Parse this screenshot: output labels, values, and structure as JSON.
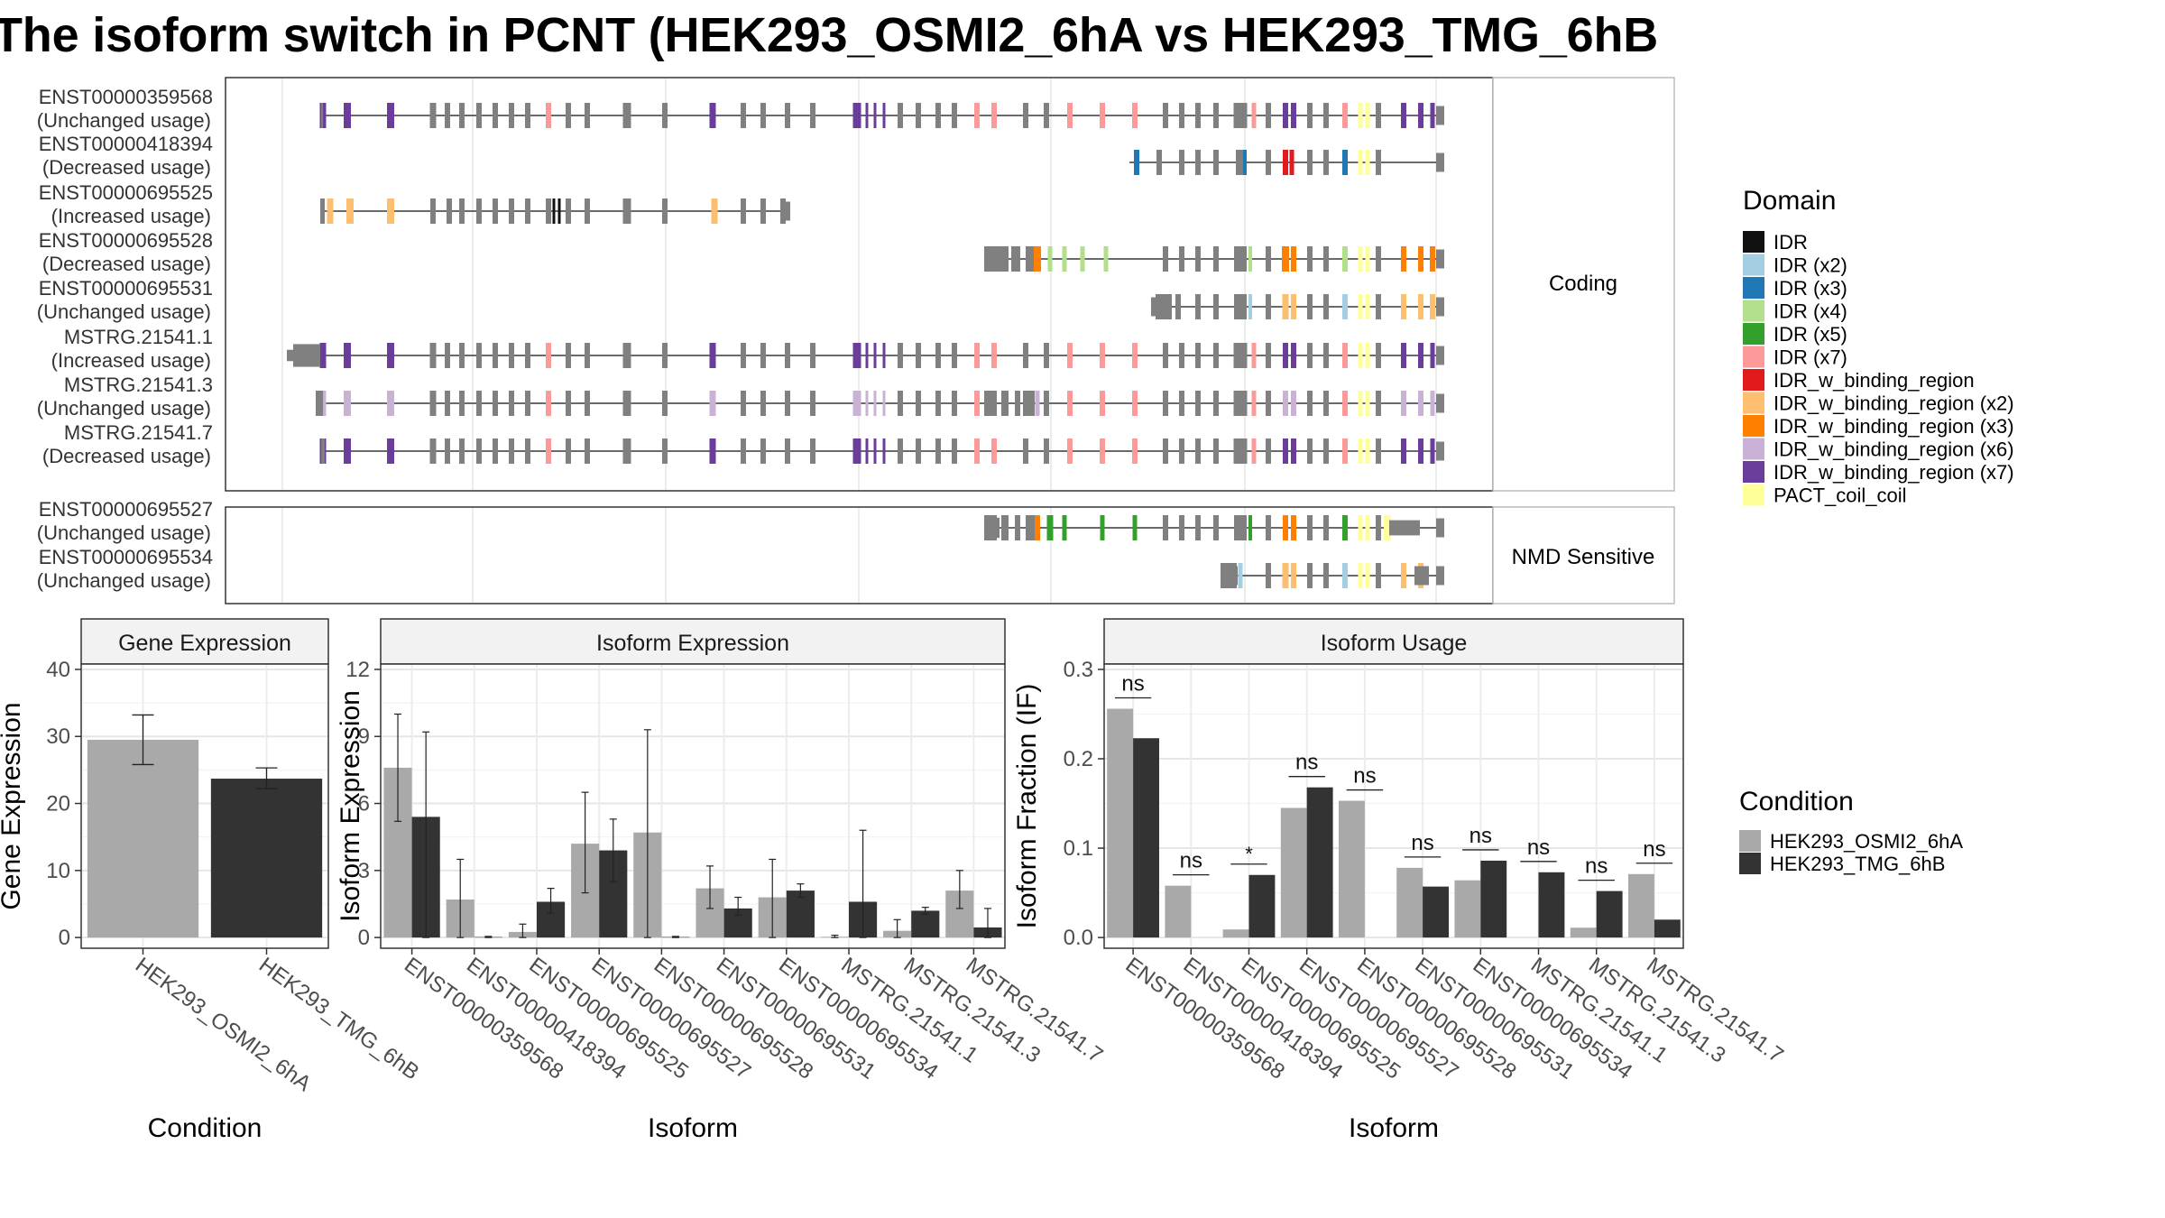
{
  "title": "The isoform switch in PCNT (HEK293_OSMI2_6hA vs HEK293_TMG_6hB",
  "structure": {
    "coding_panel_label": "Coding",
    "nmd_panel_label": "NMD Sensitive",
    "coding_isoforms": [
      {
        "id": "ENST00000359568",
        "usage": "(Unchanged usage)"
      },
      {
        "id": "ENST00000418394",
        "usage": "(Decreased usage)"
      },
      {
        "id": "ENST00000695525",
        "usage": "(Increased usage)"
      },
      {
        "id": "ENST00000695528",
        "usage": "(Decreased usage)"
      },
      {
        "id": "ENST00000695531",
        "usage": "(Unchanged usage)"
      },
      {
        "id": "MSTRG.21541.1",
        "usage": "(Increased usage)"
      },
      {
        "id": "MSTRG.21541.3",
        "usage": "(Unchanged usage)"
      },
      {
        "id": "MSTRG.21541.7",
        "usage": "(Decreased usage)"
      }
    ],
    "nmd_isoforms": [
      {
        "id": "ENST00000695527",
        "usage": "(Unchanged usage)"
      },
      {
        "id": "ENST00000695534",
        "usage": "(Unchanged usage)"
      }
    ]
  },
  "legend_domain": {
    "title": "Domain",
    "entries": [
      {
        "label": "IDR",
        "color": "#111111"
      },
      {
        "label": "IDR (x2)",
        "color": "#a6cee3"
      },
      {
        "label": "IDR (x3)",
        "color": "#1f78b4"
      },
      {
        "label": "IDR (x4)",
        "color": "#b2df8a"
      },
      {
        "label": "IDR (x5)",
        "color": "#33a02c"
      },
      {
        "label": "IDR (x7)",
        "color": "#fb9a99"
      },
      {
        "label": "IDR_w_binding_region",
        "color": "#e31a1c"
      },
      {
        "label": "IDR_w_binding_region (x2)",
        "color": "#fdbf6f"
      },
      {
        "label": "IDR_w_binding_region (x3)",
        "color": "#ff7f00"
      },
      {
        "label": "IDR_w_binding_region (x6)",
        "color": "#cab2d6"
      },
      {
        "label": "IDR_w_binding_region (x7)",
        "color": "#6a3d9a"
      },
      {
        "label": "PACT_coil_coil",
        "color": "#ffff99"
      }
    ]
  },
  "legend_condition": {
    "title": "Condition",
    "entries": [
      {
        "label": "HEK293_OSMI2_6hA",
        "color": "#a9a9a9"
      },
      {
        "label": "HEK293_TMG_6hB",
        "color": "#333333"
      }
    ]
  },
  "chart_data": [
    {
      "type": "bar",
      "title": "Gene Expression",
      "xlabel": "Condition",
      "ylabel": "Gene Expression",
      "categories": [
        "HEK293_OSMI2_6hA",
        "HEK293_TMG_6hB"
      ],
      "values": [
        29.5,
        23.7
      ],
      "errors": [
        [
          25.8,
          33.2
        ],
        [
          22.2,
          25.3
        ]
      ],
      "ylim": [
        0,
        40
      ],
      "yticks": [
        0,
        10,
        20,
        30,
        40
      ],
      "colors": [
        "#a9a9a9",
        "#333333"
      ]
    },
    {
      "type": "bar",
      "title": "Isoform Expression",
      "xlabel": "Isoform",
      "ylabel": "Isoform Expression",
      "categories": [
        "ENST00000359568",
        "ENST00000418394",
        "ENST00000695525",
        "ENST00000695527",
        "ENST00000695528",
        "ENST00000695531",
        "ENST00000695534",
        "MSTRG.21541.1",
        "MSTRG.21541.3",
        "MSTRG.21541.7"
      ],
      "series": [
        {
          "name": "HEK293_OSMI2_6hA",
          "values": [
            7.6,
            1.7,
            0.25,
            4.2,
            4.7,
            2.2,
            1.8,
            0.03,
            0.3,
            2.1
          ],
          "errors": [
            [
              5.2,
              10.0
            ],
            [
              0.0,
              3.5
            ],
            [
              0.0,
              0.6
            ],
            [
              2.0,
              6.5
            ],
            [
              0.0,
              9.3
            ],
            [
              1.3,
              3.2
            ],
            [
              0.0,
              3.5
            ],
            [
              0.0,
              0.1
            ],
            [
              0.0,
              0.8
            ],
            [
              1.3,
              3.0
            ]
          ]
        },
        {
          "name": "HEK293_TMG_6hB",
          "values": [
            5.4,
            0.02,
            1.6,
            3.9,
            0.02,
            1.3,
            2.1,
            1.6,
            1.2,
            0.45
          ],
          "errors": [
            [
              0.0,
              9.2
            ],
            [
              0.0,
              0.05
            ],
            [
              1.1,
              2.2
            ],
            [
              2.5,
              5.3
            ],
            [
              0.0,
              0.05
            ],
            [
              1.0,
              1.8
            ],
            [
              1.8,
              2.4
            ],
            [
              0.0,
              4.8
            ],
            [
              1.05,
              1.35
            ],
            [
              0.0,
              1.3
            ]
          ]
        }
      ],
      "ylim": [
        0,
        12
      ],
      "yticks": [
        0,
        3,
        6,
        9,
        12
      ]
    },
    {
      "type": "bar",
      "title": "Isoform Usage",
      "xlabel": "Isoform",
      "ylabel": "Isoform Fraction (IF)",
      "categories": [
        "ENST00000359568",
        "ENST00000418394",
        "ENST00000695525",
        "ENST00000695527",
        "ENST00000695528",
        "ENST00000695531",
        "ENST00000695534",
        "MSTRG.21541.1",
        "MSTRG.21541.3",
        "MSTRG.21541.7"
      ],
      "series": [
        {
          "name": "HEK293_OSMI2_6hA",
          "values": [
            0.256,
            0.058,
            0.009,
            0.145,
            0.153,
            0.078,
            0.064,
            0.0,
            0.011,
            0.071
          ]
        },
        {
          "name": "HEK293_TMG_6hB",
          "values": [
            0.223,
            0.0,
            0.07,
            0.168,
            0.0,
            0.057,
            0.086,
            0.073,
            0.052,
            0.02
          ]
        }
      ],
      "significance": [
        "ns",
        "ns",
        "*",
        "ns",
        "ns",
        "ns",
        "ns",
        "ns",
        "ns",
        "ns"
      ],
      "ylim": [
        0,
        0.3
      ],
      "yticks": [
        "0.0",
        "0.1",
        "0.2",
        "0.3"
      ]
    }
  ]
}
